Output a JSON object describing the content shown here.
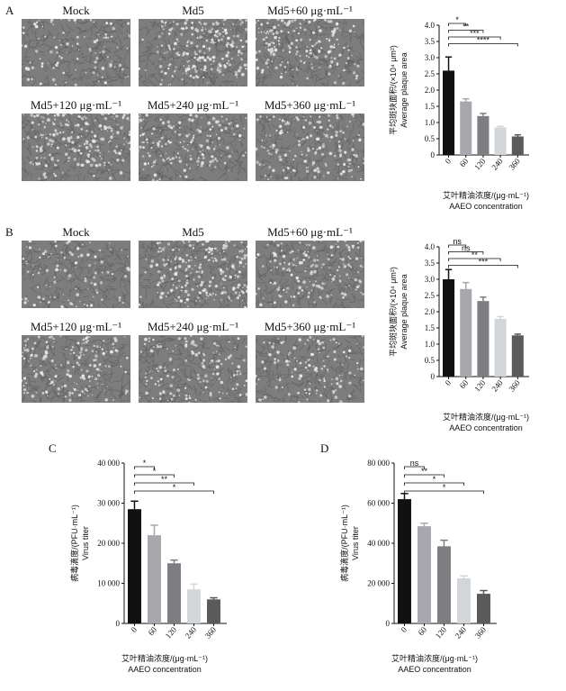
{
  "panels": [
    {
      "letter": "A",
      "labels": [
        "Mock",
        "Md5",
        "Md5+60 μg·mL⁻¹",
        "Md5+120 μg·mL⁻¹",
        "Md5+240 μg·mL⁻¹",
        "Md5+360 μg·mL⁻¹"
      ]
    },
    {
      "letter": "B",
      "labels": [
        "Mock",
        "Md5",
        "Md5+60 μg·mL⁻¹",
        "Md5+120 μg·mL⁻¹",
        "Md5+240 μg·mL⁻¹",
        "Md5+360 μg·mL⁻¹"
      ]
    },
    {
      "letter": "C"
    },
    {
      "letter": "D"
    }
  ],
  "chart_data": [
    {
      "type": "bar",
      "panel": "A",
      "categories": [
        "0",
        "60",
        "120",
        "240",
        "360"
      ],
      "values": [
        2.6,
        1.65,
        1.2,
        0.85,
        0.57
      ],
      "errors": [
        0.42,
        0.08,
        0.08,
        0.03,
        0.05
      ],
      "ylim": [
        0,
        4.0
      ],
      "yticks": [
        "0",
        "0.5",
        "1.0",
        "1.5",
        "2.0",
        "2.5",
        "3.0",
        "3.5",
        "4.0"
      ],
      "ylabel_cn": "平均斑块面积/(×10⁴ μm²)",
      "ylabel_en": "Average plaque area",
      "xlabel_cn": "艾叶精油浓度/(μg·mL⁻¹)",
      "xlabel_en": "AAEO concentration",
      "colors": [
        "#111111",
        "#a7a7ad",
        "#7e7e82",
        "#d2d6d8",
        "#5a5a5c"
      ],
      "significance": [
        {
          "to": 1,
          "label": "*"
        },
        {
          "to": 2,
          "label": "**"
        },
        {
          "to": 3,
          "label": "***"
        },
        {
          "to": 4,
          "label": "****"
        }
      ]
    },
    {
      "type": "bar",
      "panel": "B",
      "categories": [
        "0",
        "60",
        "120",
        "240",
        "360"
      ],
      "values": [
        3.0,
        2.7,
        2.33,
        1.78,
        1.27
      ],
      "errors": [
        0.3,
        0.2,
        0.12,
        0.07,
        0.04
      ],
      "ylim": [
        0,
        4.0
      ],
      "yticks": [
        "0",
        "0.5",
        "1.0",
        "1.5",
        "2.0",
        "2.5",
        "3.0",
        "3.5",
        "4.0"
      ],
      "ylabel_cn": "平均斑块面积/(×10⁴ μm²)",
      "ylabel_en": "Average plaque area",
      "xlabel_cn": "艾叶精油浓度/(μg·mL⁻¹)",
      "xlabel_en": "AAEO concentration",
      "colors": [
        "#111111",
        "#a7a7ad",
        "#7e7e82",
        "#d2d6d8",
        "#5a5a5c"
      ],
      "significance": [
        {
          "to": 1,
          "label": "ns"
        },
        {
          "to": 2,
          "label": "ns"
        },
        {
          "to": 3,
          "label": "**"
        },
        {
          "to": 4,
          "label": "***"
        }
      ]
    },
    {
      "type": "bar",
      "panel": "C",
      "categories": [
        "0",
        "60",
        "120",
        "240",
        "360"
      ],
      "values": [
        28500,
        22000,
        15000,
        8500,
        6000
      ],
      "errors": [
        2000,
        2500,
        800,
        1300,
        400
      ],
      "ylim": [
        0,
        40000
      ],
      "yticks": [
        "0",
        "10 000",
        "20 000",
        "30 000",
        "40 000"
      ],
      "ylabel_cn": "病毒滴度/(PFU·mL⁻¹)",
      "ylabel_en": "Virus titer",
      "xlabel_cn": "艾叶精油浓度/(μg·mL⁻¹)",
      "xlabel_en": "AAEO concentration",
      "colors": [
        "#111111",
        "#a7a7ad",
        "#7e7e82",
        "#d2d6d8",
        "#5a5a5c"
      ],
      "significance": [
        {
          "to": 1,
          "label": "*"
        },
        {
          "to": 2,
          "label": "*"
        },
        {
          "to": 3,
          "label": "**"
        },
        {
          "to": 4,
          "label": "*"
        }
      ]
    },
    {
      "type": "bar",
      "panel": "D",
      "categories": [
        "0",
        "60",
        "120",
        "240",
        "360"
      ],
      "values": [
        62000,
        48500,
        38500,
        22500,
        14800
      ],
      "errors": [
        2800,
        1500,
        3000,
        1200,
        1600
      ],
      "ylim": [
        0,
        80000
      ],
      "yticks": [
        "0",
        "20 000",
        "40 000",
        "60 000",
        "80 000"
      ],
      "ylabel_cn": "病毒滴度/(PFU·mL⁻¹)",
      "ylabel_en": "Virus titer",
      "xlabel_cn": "艾叶精油浓度/(μg·mL⁻¹)",
      "xlabel_en": "AAEO concentration",
      "colors": [
        "#111111",
        "#a7a7ad",
        "#7e7e82",
        "#d2d6d8",
        "#5a5a5c"
      ],
      "significance": [
        {
          "to": 1,
          "label": "ns"
        },
        {
          "to": 2,
          "label": "**"
        },
        {
          "to": 3,
          "label": "*"
        },
        {
          "to": 4,
          "label": "*"
        }
      ]
    }
  ]
}
